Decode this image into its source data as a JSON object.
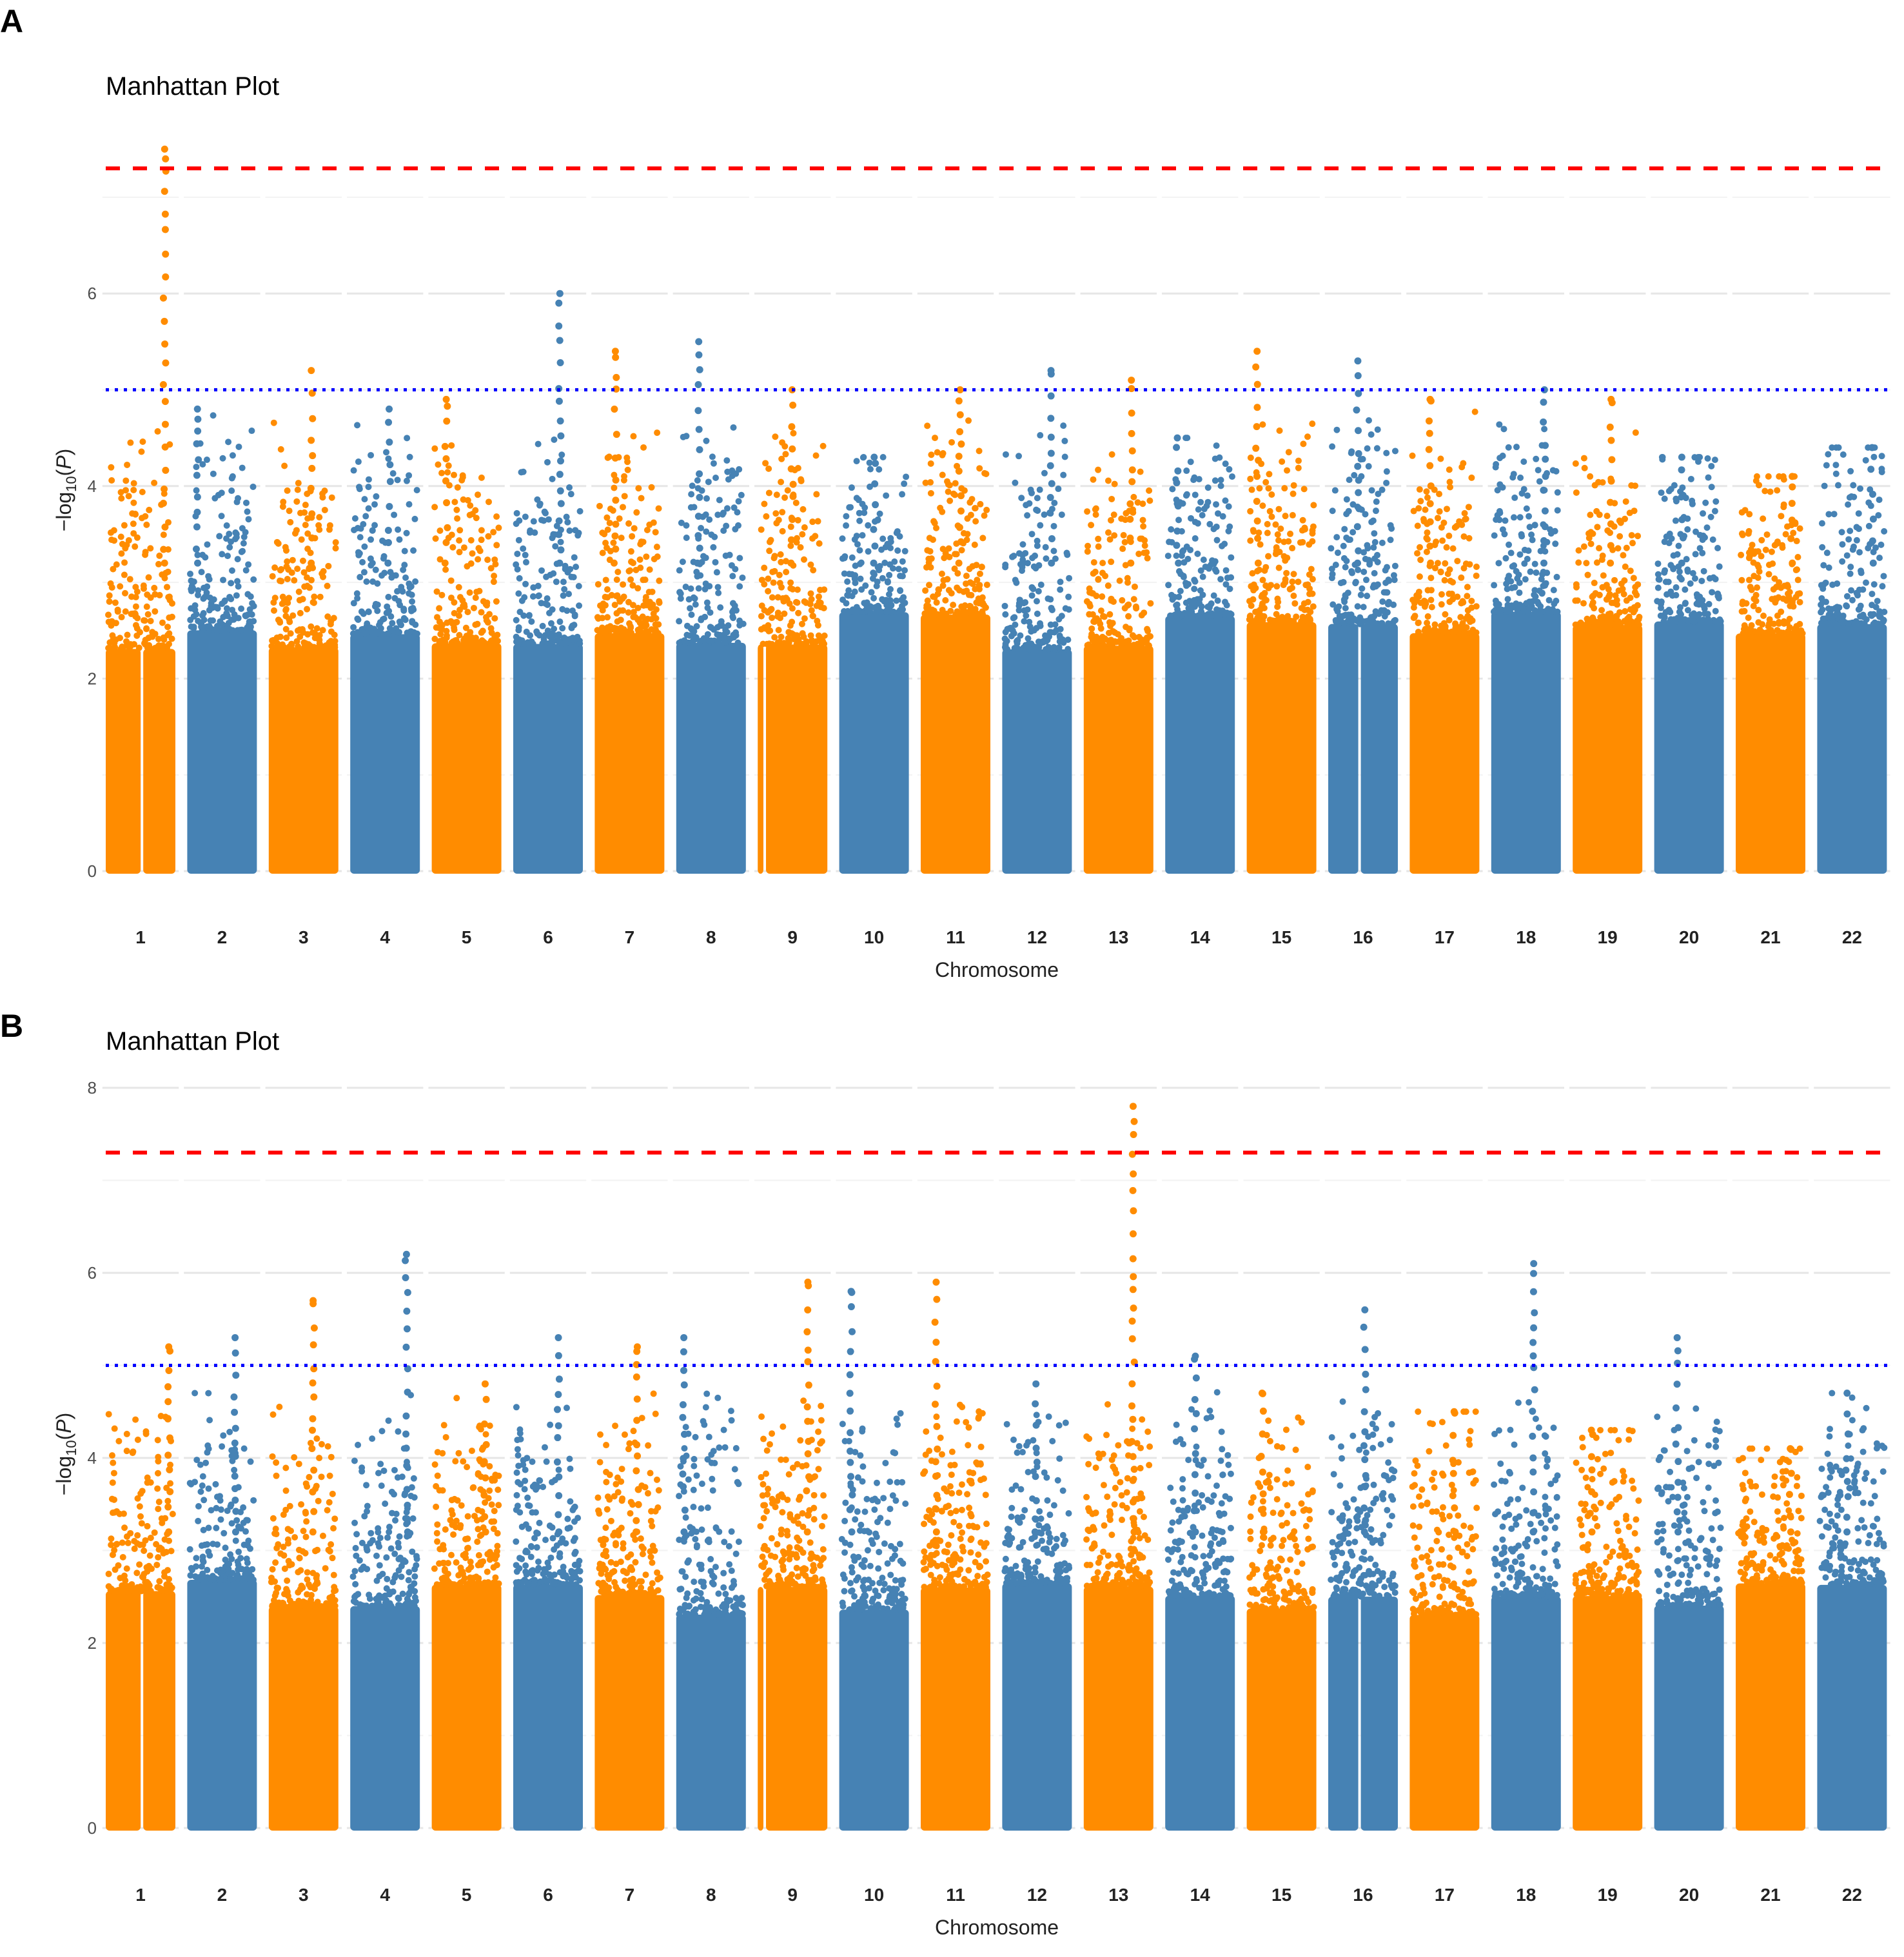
{
  "chart_data": [
    {
      "panel": "A",
      "type": "scatter",
      "subtype": "manhattan",
      "title": "Manhattan Plot",
      "xlabel": "Chromosome",
      "ylabel": "-log10(P)",
      "ylim": [
        0,
        7.6
      ],
      "yticks": [
        0,
        2,
        4,
        6
      ],
      "categories": [
        "1",
        "2",
        "3",
        "4",
        "5",
        "6",
        "7",
        "8",
        "9",
        "10",
        "11",
        "12",
        "13",
        "14",
        "15",
        "16",
        "17",
        "18",
        "19",
        "20",
        "21",
        "22"
      ],
      "max_neglog10p": [
        7.5,
        4.8,
        5.2,
        4.8,
        4.9,
        6.0,
        5.4,
        5.5,
        5.0,
        4.3,
        5.0,
        5.2,
        5.1,
        4.5,
        5.4,
        5.3,
        4.9,
        5.0,
        4.9,
        4.3,
        4.1,
        4.4
      ],
      "genome_wide_line": 7.3,
      "suggestive_line": 5.0,
      "colors": [
        "#FF8C00",
        "#4682B4"
      ],
      "line_colors": {
        "genome_wide": "#FF0000",
        "suggestive": "#0000FF"
      },
      "grid": true
    },
    {
      "panel": "B",
      "type": "scatter",
      "subtype": "manhattan",
      "title": "Manhattan Plot",
      "xlabel": "Chromosome",
      "ylabel": "-log10(P)",
      "ylim": [
        0,
        8
      ],
      "yticks": [
        0,
        2,
        4,
        6,
        8
      ],
      "categories": [
        "1",
        "2",
        "3",
        "4",
        "5",
        "6",
        "7",
        "8",
        "9",
        "10",
        "11",
        "12",
        "13",
        "14",
        "15",
        "16",
        "17",
        "18",
        "19",
        "20",
        "21",
        "22"
      ],
      "max_neglog10p": [
        5.2,
        5.3,
        5.7,
        6.2,
        4.8,
        5.3,
        5.2,
        5.3,
        5.9,
        5.8,
        5.9,
        4.8,
        7.8,
        5.1,
        4.7,
        5.6,
        4.5,
        6.1,
        4.3,
        5.3,
        4.1,
        4.7
      ],
      "genome_wide_line": 7.3,
      "suggestive_line": 5.0,
      "colors": [
        "#FF8C00",
        "#4682B4"
      ],
      "line_colors": {
        "genome_wide": "#FF0000",
        "suggestive": "#0000FF"
      },
      "grid": true
    }
  ],
  "panels": [
    {
      "letter": "A",
      "title": "Manhattan Plot",
      "xlabel": "Chromosome",
      "ylabel_prefix": "−log",
      "ylabel_sub": "10",
      "ylabel_var": "P"
    },
    {
      "letter": "B",
      "title": "Manhattan Plot",
      "xlabel": "Chromosome",
      "ylabel_prefix": "−log",
      "ylabel_sub": "10",
      "ylabel_var": "P"
    }
  ]
}
